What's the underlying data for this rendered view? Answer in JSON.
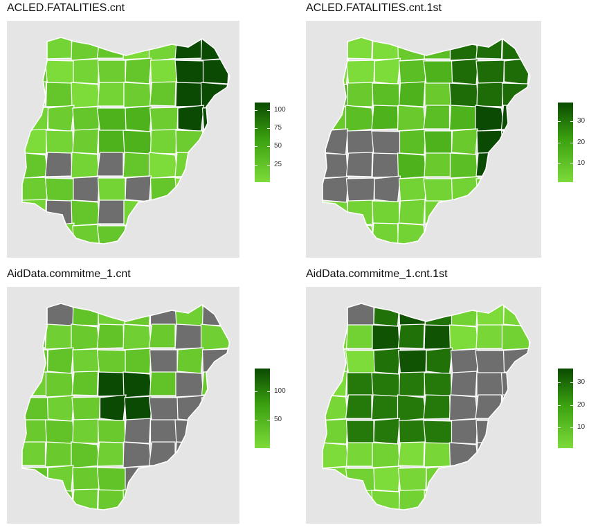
{
  "colors": {
    "low": "#7ddb3a",
    "mid": "#3aa010",
    "high": "#0b4a02",
    "missing": "#6e6e6e",
    "panel_background": "#e5e5e5",
    "border": "#ffffff"
  },
  "panels": [
    {
      "title": "ACLED.FATALITIES.cnt",
      "legend": {
        "min": 1,
        "max": 110,
        "ticks": [
          25,
          50,
          75,
          100
        ]
      }
    },
    {
      "title": "ACLED.FATALITIES.cnt.1st",
      "legend": {
        "min": 1,
        "max": 39,
        "ticks": [
          10,
          20,
          30
        ]
      }
    },
    {
      "title": "AidData.commitme_1.cnt",
      "legend": {
        "min": 1,
        "max": 140,
        "ticks": [
          50,
          100
        ]
      }
    },
    {
      "title": "AidData.commitme_1.cnt.1st",
      "legend": {
        "min": 1,
        "max": 36,
        "ticks": [
          10,
          20,
          30
        ]
      }
    }
  ]
}
